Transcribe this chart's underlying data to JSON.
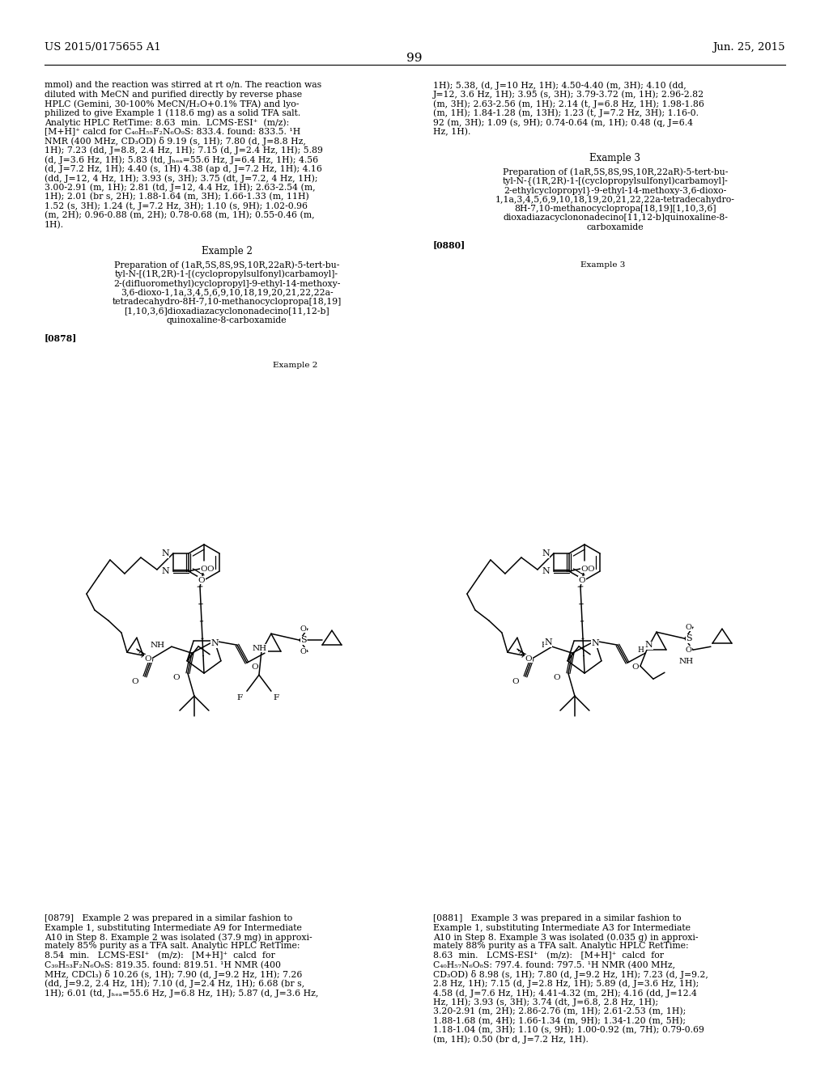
{
  "patent_number": "US 2015/0175655 A1",
  "date": "Jun. 25, 2015",
  "page_number": "99",
  "bg": "#ffffff",
  "fg": "#000000",
  "left_col_top": [
    "mmol) and the reaction was stirred at rt o/n. The reaction was",
    "diluted with MeCN and purified directly by reverse phase",
    "HPLC (Gemini, 30-100% MeCN/H₂O+0.1% TFA) and lyo-",
    "philized to give Example 1 (118.6 mg) as a solid TFA salt.",
    "Analytic HPLC RetTime: 8.63  min.  LCMS-ESI⁺  (m/z):",
    "[M+H]⁺ calcd for C₄₀H₅₅F₂N₆O₉S: 833.4. found: 833.5. ¹H",
    "NMR (400 MHz, CD₃OD) δ 9.19 (s, 1H); 7.80 (d, J=8.8 Hz,",
    "1H); 7.23 (dd, J=8.8, 2.4 Hz, 1H); 7.15 (d, J=2.4 Hz, 1H); 5.89",
    "(d, J=3.6 Hz, 1H); 5.83 (td, Jₕₑₐ=55.6 Hz, J=6.4 Hz, 1H); 4.56",
    "(d, J=7.2 Hz, 1H); 4.40 (s, 1H) 4.38 (ap d, J=7.2 Hz, 1H); 4.16",
    "(dd, J=12, 4 Hz, 1H); 3.93 (s, 3H); 3.75 (dt, J=7.2, 4 Hz, 1H);",
    "3.00-2.91 (m, 1H); 2.81 (td, J=12, 4.4 Hz, 1H); 2.63-2.54 (m,",
    "1H); 2.01 (br s, 2H); 1.88-1.64 (m, 3H); 1.66-1.33 (m, 11H)",
    "1.52 (s, 3H); 1.24 (t, J=7.2 Hz, 3H); 1.10 (s, 9H); 1.02-0.96",
    "(m, 2H); 0.96-0.88 (m, 2H); 0.78-0.68 (m, 1H); 0.55-0.46 (m,",
    "1H)."
  ],
  "right_col_top": [
    "1H); 5.38, (d, J=10 Hz, 1H); 4.50-4.40 (m, 3H); 4.10 (dd,",
    "J=12, 3.6 Hz, 1H); 3.95 (s, 3H); 3.79-3.72 (m, 1H); 2.96-2.82",
    "(m, 3H); 2.63-2.56 (m, 1H); 2.14 (t, J=6.8 Hz, 1H); 1.98-1.86",
    "(m, 1H); 1.84-1.28 (m, 13H); 1.23 (t, J=7.2 Hz, 3H); 1.16-0.",
    "92 (m, 3H); 1.09 (s, 9H); 0.74-0.64 (m, 1H); 0.48 (q, J=6.4",
    "Hz, 1H)."
  ],
  "ex3_heading": "Example 3",
  "ex3_title": [
    "Preparation of (1aR,5S,8S,9S,10R,22aR)-5-tert-bu-",
    "tyl-N-{(1R,2R)-1-[(cyclopropylsulfonyl)carbamoyl]-",
    "2-ethylcyclopropyl}-9-ethyl-14-methoxy-3,6-dioxo-",
    "1,1a,3,4,5,6,9,10,18,19,20,21,22,22a-tetradecahydro-",
    "8H-7,10-methanocyclopropa[18,19][1,10,3,6]",
    "dioxadiazacyclononadecino[11,12-b]quinoxaline-8-",
    "carboxamide"
  ],
  "para0880": "[0880]",
  "ex2_heading": "Example 2",
  "ex2_title": [
    "Preparation of (1aR,5S,8S,9S,10R,22aR)-5-tert-bu-",
    "tyl-N-[(1R,2R)-1-[(cyclopropylsulfonyl)carbamoyl]-",
    "2-(difluoromethyl)cyclopropyl]-9-ethyl-14-methoxy-",
    "3,6-dioxo-1,1a,3,4,5,6,9,10,18,19,20,21,22,22a-",
    "tetradecahydro-8H-7,10-methanocyclopropa[18,19]",
    "[1,10,3,6]dioxadiazacyclononadecino[11,12-b]",
    "quinoxaline-8-carboxamide"
  ],
  "para0878": "[0878]",
  "ex2_cap": "Example 2",
  "ex3_cap": "Example 3",
  "para0879": [
    "[0879]   Example 2 was prepared in a similar fashion to",
    "Example 1, substituting Intermediate A9 for Intermediate",
    "A10 in Step 8. Example 2 was isolated (37.9 mg) in approxi-",
    "mately 85% purity as a TFA salt. Analytic HPLC RetTime:",
    "8.54  min.   LCMS-ESI⁺   (m/z):   [M+H]⁺  calcd  for",
    "C₃₉H₅₃F₂N₆O₈S: 819.35. found: 819.51. ¹H NMR (400",
    "MHz, CDCl₃) δ 10.26 (s, 1H); 7.90 (d, J=9.2 Hz, 1H); 7.26",
    "(dd, J=9.2, 2.4 Hz, 1H); 7.10 (d, J=2.4 Hz, 1H); 6.68 (br s,",
    "1H); 6.01 (td, Jₕₑₐ=55.6 Hz, J=6.8 Hz, 1H); 5.87 (d, J=3.6 Hz,"
  ],
  "para0881": [
    "[0881]   Example 3 was prepared in a similar fashion to",
    "Example 1, substituting Intermediate A3 for Intermediate",
    "A10 in Step 8. Example 3 was isolated (0.035 g) in approxi-",
    "mately 88% purity as a TFA salt. Analytic HPLC RetTime:",
    "8.63  min.   LCMS-ESI⁺   (m/z):   [M+H]⁺  calcd  for",
    "C₄₀H₅₇N₆O₈S: 797.4. found: 797.5. ¹H NMR (400 MHz,",
    "CD₃OD) δ 8.98 (s, 1H); 7.80 (d, J=9.2 Hz, 1H); 7.23 (d, J=9.2,",
    "2.8 Hz, 1H); 7.15 (d, J=2.8 Hz, 1H); 5.89 (d, J=3.6 Hz, 1H);",
    "4.58 (d, J=7.6 Hz, 1H); 4.41-4.32 (m, 2H); 4.16 (dd, J=12.4",
    "Hz, 1H); 3.93 (s, 3H); 3.74 (dt, J=6.8, 2.8 Hz, 1H);",
    "3.20-2.91 (m, 2H); 2.86-2.76 (m, 1H); 2.61-2.53 (m, 1H);",
    "1.88-1.68 (m, 4H); 1.66-1.34 (m, 9H); 1.34-1.20 (m, 5H);",
    "1.18-1.04 (m, 3H); 1.10 (s, 9H); 1.00-0.92 (m, 7H); 0.79-0.69",
    "(m, 1H); 0.50 (br d, J=7.2 Hz, 1H)."
  ]
}
